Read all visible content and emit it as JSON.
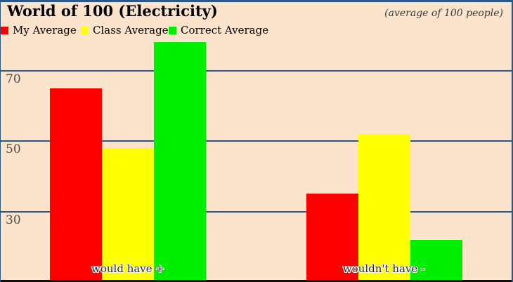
{
  "title": "World of 100 (Electricity)",
  "subtitle": "(average of 100 people)",
  "chart_data": {
    "type": "bar",
    "title": "World of 100 (Electricity)",
    "subtitle": "(average of 100 people)",
    "categories": [
      "would have +",
      "wouldn't have -"
    ],
    "series": [
      {
        "name": "My Average",
        "color": "#ff0000",
        "values": [
          65,
          35
        ]
      },
      {
        "name": "Class Average",
        "color": "#ffff00",
        "values": [
          48,
          52
        ]
      },
      {
        "name": "Correct Average",
        "color": "#00ee00",
        "values": [
          78,
          22
        ]
      }
    ],
    "ylim": [
      10,
      90
    ],
    "y_ticks": [
      70,
      50,
      30
    ],
    "gridlines": true,
    "legend_position": "top-left"
  },
  "colors": {
    "background": "#fce3cb",
    "gridline": "#2a5783",
    "frame_top": "#2a5783",
    "frame_left": "#2a5783",
    "frame_right": "#2a5783",
    "frame_bottom": "#0f0f0f",
    "title_text": "#000000",
    "subtitle_text": "#3a3a3a",
    "tick_label": "#4d4d4d",
    "category_label": "#262626"
  }
}
